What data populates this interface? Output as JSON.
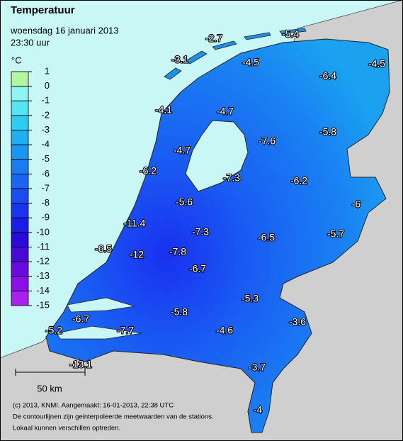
{
  "header": {
    "title": "Temperatuur",
    "date": "woensdag 16 januari 2013",
    "time": "23:30 uur"
  },
  "legend": {
    "unit": "°C",
    "levels": [
      1,
      0,
      -1,
      -2,
      -3,
      -4,
      -5,
      -6,
      -7,
      -8,
      -9,
      -10,
      -11,
      -12,
      -13,
      -14,
      -15
    ],
    "colors": [
      "#b4f5a0",
      "#8ff5f0",
      "#55e5f0",
      "#2ccdf0",
      "#1fb0f0",
      "#1a95f2",
      "#1a7cf2",
      "#1a64f2",
      "#1a4cf2",
      "#1a34f0",
      "#1a1ce8",
      "#2a0ad8",
      "#4a08d8",
      "#6a0ae0",
      "#8c10e8",
      "#aa20ec"
    ]
  },
  "stations": [
    -2.7,
    -5.4,
    -3.1,
    -4.5,
    -4.5,
    -6.4,
    -4.1,
    -4.7,
    -7.6,
    -5.8,
    -4.7,
    -6.2,
    -7.3,
    -6.2,
    -6.0,
    -5.6,
    -11.4,
    -7.3,
    -6.5,
    -5.7,
    -6.5,
    -12.0,
    -7.8,
    -6.7,
    -5.3,
    -5.8,
    -3.6,
    -6.7,
    -4.6,
    -5.2,
    -7.7,
    -13.1,
    -3.7,
    -4.0
  ],
  "scale": {
    "label": "50 km"
  },
  "footer": {
    "lines": [
      "(c) 2013, KNMI. Aangemaakt: 16-01-2013, 22:38 UTC",
      "De contourlijnen zijn geinterpoleerde meetwaarden van de stations.",
      "Lokaal kunnen verschillen optreden."
    ]
  }
}
